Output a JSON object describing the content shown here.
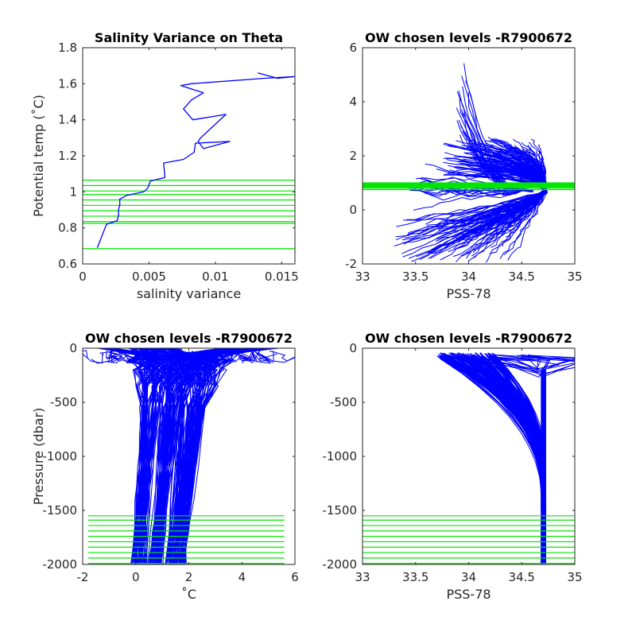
{
  "chart_data": [
    {
      "type": "line",
      "title": "Salinity Variance on Theta",
      "xlabel": "salinity variance",
      "ylabel": "Potential temp (˚C)",
      "xlim": [
        0,
        0.016
      ],
      "ylim": [
        0.6,
        1.8
      ],
      "xticks": [
        0,
        0.005,
        0.01,
        0.015
      ],
      "xtick_labels": [
        "0",
        "0.005",
        "0.01",
        "0.015"
      ],
      "yticks": [
        0.6,
        0.8,
        1.0,
        1.2,
        1.4,
        1.6,
        1.8
      ],
      "ytick_labels": [
        "0.6",
        "0.8",
        "1",
        "1.2",
        "1.4",
        "1.6",
        "1.8"
      ],
      "series": [
        {
          "color": "#0000ff",
          "x": [
            0.0011,
            0.0018,
            0.0026,
            0.0027,
            0.0027,
            0.0028,
            0.0028,
            0.0033,
            0.0046,
            0.0049,
            0.0051,
            0.0062,
            0.0061,
            0.0076,
            0.0084,
            0.0085,
            0.0111,
            0.0091,
            0.0087,
            0.0089,
            0.0108,
            0.0083,
            0.0076,
            0.0082,
            0.0091,
            0.0074,
            0.0082,
            0.0137,
            0.016,
            0.0147,
            0.0132
          ],
          "y": [
            0.69,
            0.82,
            0.84,
            0.87,
            0.9,
            0.93,
            0.96,
            0.98,
            1.0,
            1.02,
            1.06,
            1.08,
            1.16,
            1.18,
            1.22,
            1.27,
            1.28,
            1.24,
            1.28,
            1.3,
            1.43,
            1.4,
            1.46,
            1.51,
            1.55,
            1.59,
            1.6,
            1.63,
            1.64,
            1.63,
            1.66
          ]
        }
      ],
      "hlines": {
        "color": "#00e600",
        "y": [
          0.685,
          0.825,
          0.835,
          0.865,
          0.895,
          0.925,
          0.955,
          0.985,
          1.005,
          1.035,
          1.065
        ]
      }
    },
    {
      "type": "line",
      "title": "OW chosen levels -R7900672",
      "xlabel": "PSS-78",
      "ylabel": "",
      "xlim": [
        33,
        35
      ],
      "ylim": [
        -2,
        6
      ],
      "xticks": [
        33,
        33.5,
        34,
        34.5,
        35
      ],
      "xtick_labels": [
        "33",
        "33.5",
        "34",
        "34.5",
        "35"
      ],
      "yticks": [
        -2,
        0,
        2,
        4,
        6
      ],
      "ytick_labels": [
        "-2",
        "0",
        "2",
        "4",
        "6"
      ],
      "series": [
        {
          "color": "#0000ff",
          "description_of_profiles": "many theta-salinity profiles from 1800 to about 2000 dbar",
          "sample_profiles": [
            {
              "S": [
                34.72,
                34.7,
                34.62,
                34.5,
                34.3,
                34.1,
                33.95,
                33.9
              ],
              "T": [
                0.6,
                0.8,
                1.2,
                1.7,
                2.2,
                2.6,
                3.0,
                3.3
              ]
            },
            {
              "S": [
                34.71,
                34.68,
                34.6,
                34.45,
                34.25,
                34.05,
                33.93
              ],
              "T": [
                0.7,
                1.0,
                1.5,
                2.0,
                2.4,
                2.7,
                5.5
              ]
            },
            {
              "S": [
                34.72,
                34.5,
                34.2,
                33.8,
                33.5,
                33.3
              ],
              "T": [
                0.6,
                0.2,
                -0.3,
                -0.7,
                -1.0,
                -1.2
              ]
            },
            {
              "S": [
                34.7,
                34.55,
                34.35,
                34.2,
                34.3,
                34.35
              ],
              "T": [
                0.6,
                0.0,
                -0.6,
                -1.2,
                -1.6,
                -1.8
              ]
            }
          ]
        }
      ],
      "hband": {
        "color": "#00e600",
        "y": [
          0.75,
          1.0
        ]
      }
    },
    {
      "type": "line",
      "title": "OW chosen levels -R7900672",
      "xlabel": "˚C",
      "ylabel": "Pressure (dbar)",
      "xlim": [
        -2,
        6
      ],
      "ylim": [
        -2000,
        0
      ],
      "xticks": [
        -2,
        0,
        2,
        4,
        6
      ],
      "xtick_labels": [
        "-2",
        "0",
        "2",
        "4",
        "6"
      ],
      "yticks": [
        -2000,
        -1500,
        -1000,
        -500,
        0
      ],
      "ytick_labels": [
        "-2000",
        "-1500",
        "-1000",
        "-500",
        "0"
      ],
      "series": [
        {
          "color": "#0000ff",
          "sample_profiles": [
            {
              "T": [
                5.0,
                3.0,
                1.5,
                1.2,
                1.0,
                0.5,
                0.2
              ],
              "P": [
                0,
                -100,
                -300,
                -700,
                -1200,
                -1600,
                -2000
              ]
            },
            {
              "T": [
                4.0,
                2.8,
                2.2,
                1.9,
                1.8,
                1.7,
                1.6
              ],
              "P": [
                0,
                -80,
                -300,
                -700,
                -1200,
                -1600,
                -2000
              ]
            },
            {
              "T": [
                1.0,
                0.4,
                0.3,
                0.3,
                0.2,
                0.0,
                -0.2
              ],
              "P": [
                0,
                -100,
                -300,
                -700,
                -1200,
                -1600,
                -2000
              ]
            }
          ]
        }
      ],
      "hlines": {
        "color": "#00e600",
        "y": [
          -1550,
          -1590,
          -1640,
          -1690,
          -1740,
          -1790,
          -1840,
          -1890,
          -1940,
          -1990
        ]
      }
    },
    {
      "type": "line",
      "title": "OW chosen levels -R7900672",
      "xlabel": "PSS-78",
      "ylabel": "",
      "xlim": [
        33,
        35
      ],
      "ylim": [
        -2000,
        0
      ],
      "xticks": [
        33,
        33.5,
        34,
        34.5,
        35
      ],
      "xtick_labels": [
        "33",
        "33.5",
        "34",
        "34.5",
        "35"
      ],
      "yticks": [
        -2000,
        -1500,
        -1000,
        -500,
        0
      ],
      "ytick_labels": [
        "-2000",
        "-1500",
        "-1000",
        "-500",
        "0"
      ],
      "series": [
        {
          "color": "#0000ff",
          "sample_profiles": [
            {
              "S": [
                33.8,
                34.2,
                34.5,
                34.65,
                34.7,
                34.72
              ],
              "P": [
                -100,
                -200,
                -500,
                -1000,
                -1500,
                -2000
              ]
            },
            {
              "S": [
                33.9,
                34.4,
                34.6,
                34.68,
                34.71,
                34.72
              ],
              "P": [
                -80,
                -150,
                -300,
                -700,
                -1300,
                -2000
              ]
            }
          ]
        }
      ],
      "hlines": {
        "color": "#00e600",
        "y": [
          -1550,
          -1590,
          -1640,
          -1690,
          -1740,
          -1790,
          -1840,
          -1890,
          -1940,
          -1990
        ]
      }
    }
  ]
}
